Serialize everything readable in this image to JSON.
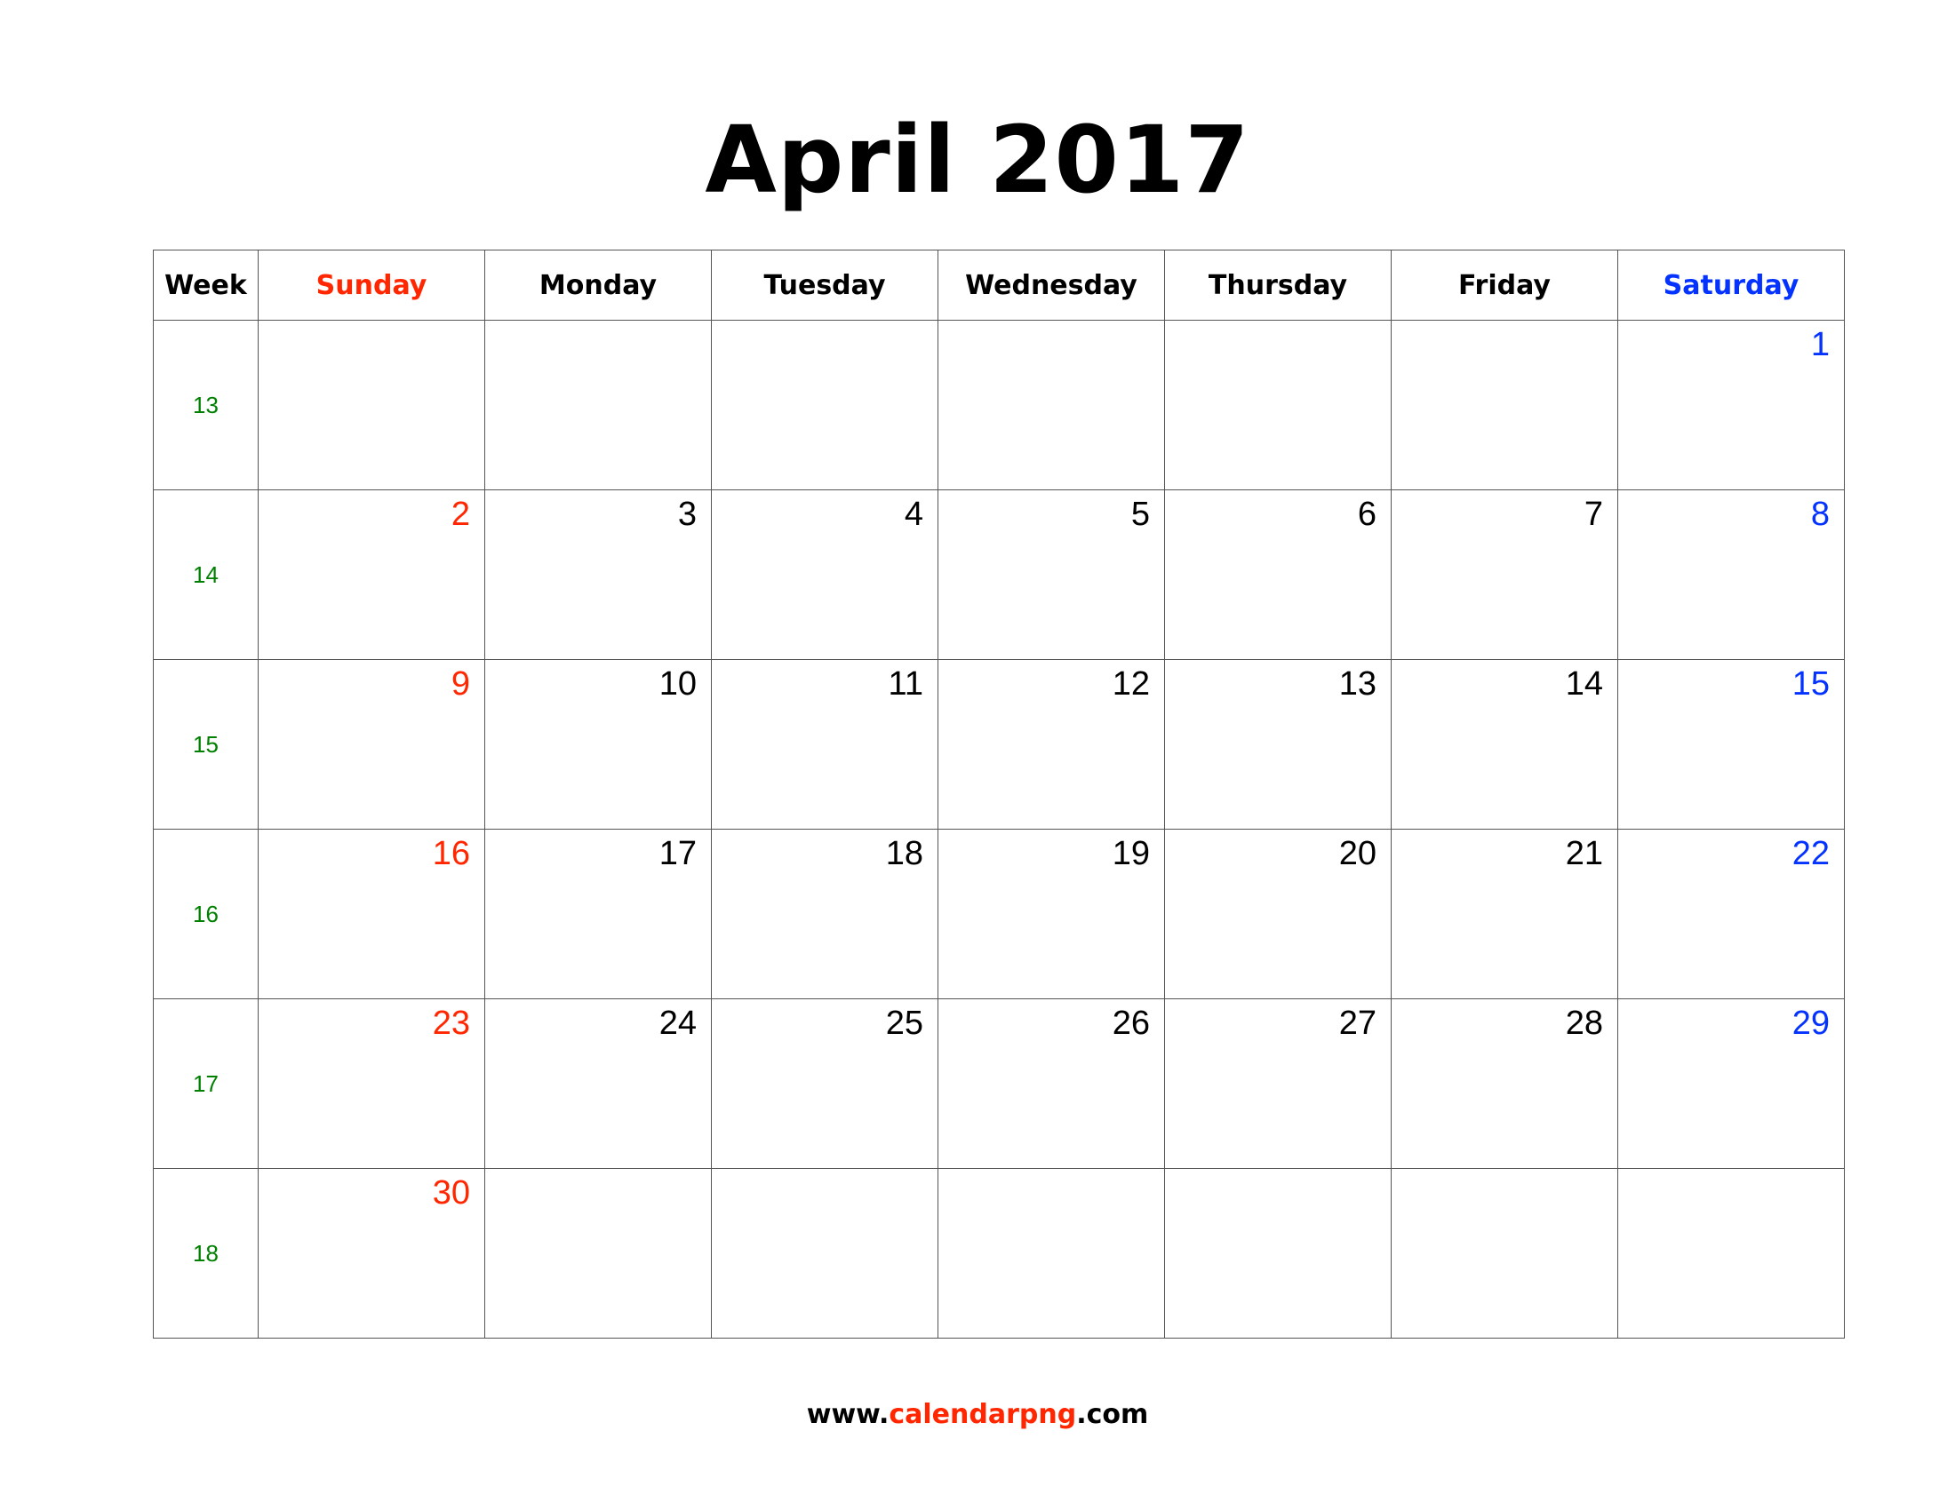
{
  "title": "April 2017",
  "colors": {
    "sunday": "#ff2600",
    "saturday": "#0433ff",
    "week_number": "#008000",
    "default": "#000000"
  },
  "headers": [
    "Week",
    "Sunday",
    "Monday",
    "Tuesday",
    "Wednesday",
    "Thursday",
    "Friday",
    "Saturday"
  ],
  "weeks": [
    {
      "num": "13",
      "days": [
        "",
        "",
        "",
        "",
        "",
        "",
        "1"
      ]
    },
    {
      "num": "14",
      "days": [
        "2",
        "3",
        "4",
        "5",
        "6",
        "7",
        "8"
      ]
    },
    {
      "num": "15",
      "days": [
        "9",
        "10",
        "11",
        "12",
        "13",
        "14",
        "15"
      ]
    },
    {
      "num": "16",
      "days": [
        "16",
        "17",
        "18",
        "19",
        "20",
        "21",
        "22"
      ]
    },
    {
      "num": "17",
      "days": [
        "23",
        "24",
        "25",
        "26",
        "27",
        "28",
        "29"
      ]
    },
    {
      "num": "18",
      "days": [
        "30",
        "",
        "",
        "",
        "",
        "",
        ""
      ]
    }
  ],
  "footer": {
    "prefix": "www.",
    "highlight": "calendarpng",
    "suffix": ".com"
  }
}
